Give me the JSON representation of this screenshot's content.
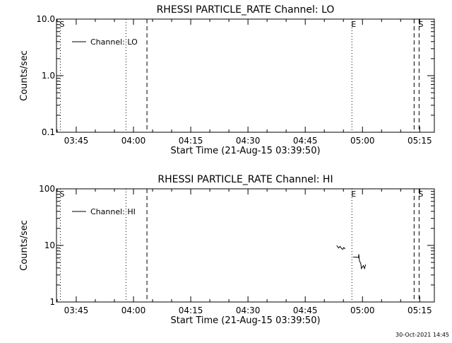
{
  "colors": {
    "background": "#ffffff",
    "foreground": "#000000"
  },
  "footer": {
    "timestamp": "30-Oct-2021 14:45"
  },
  "chart_data": [
    {
      "type": "line",
      "title": "RHESSI PARTICLE_RATE Channel: LO",
      "xlabel": "Start Time (21-Aug-15 03:39:50)",
      "ylabel": "Counts/sec",
      "yscale": "log",
      "ylim": [
        0.1,
        10.0
      ],
      "xlim_minutes": [
        0,
        99
      ],
      "xtick_minutes": [
        5.17,
        20.17,
        35.17,
        50.17,
        65.17,
        80.17,
        95.17
      ],
      "xtick_labels": [
        "03:45",
        "04:00",
        "04:15",
        "04:30",
        "04:45",
        "05:00",
        "05:15"
      ],
      "ytick_values": [
        0.1,
        1.0,
        10.0
      ],
      "ytick_labels": [
        "0.1",
        "1.0",
        "10.0"
      ],
      "legend": {
        "placement": "top-left",
        "entries": [
          "Channel: LO"
        ]
      },
      "series": [
        {
          "name": "Channel: LO",
          "points": []
        }
      ],
      "markers": [
        {
          "minute": 1.0,
          "style": "dotted",
          "label": "S"
        },
        {
          "minute": 18.2,
          "style": "dotted",
          "label": ""
        },
        {
          "minute": 23.7,
          "style": "dashed",
          "label": ""
        },
        {
          "minute": 77.4,
          "style": "dotted",
          "label": "E"
        },
        {
          "minute": 93.7,
          "style": "dashed",
          "label": ""
        },
        {
          "minute": 95.0,
          "style": "dashed",
          "label": "S"
        }
      ]
    },
    {
      "type": "line",
      "title": "RHESSI PARTICLE_RATE Channel: HI",
      "xlabel": "Start Time (21-Aug-15 03:39:50)",
      "ylabel": "Counts/sec",
      "yscale": "log",
      "ylim": [
        1,
        100
      ],
      "xlim_minutes": [
        0,
        99
      ],
      "xtick_minutes": [
        5.17,
        20.17,
        35.17,
        50.17,
        65.17,
        80.17,
        95.17
      ],
      "xtick_labels": [
        "03:45",
        "04:00",
        "04:15",
        "04:30",
        "04:45",
        "05:00",
        "05:15"
      ],
      "ytick_values": [
        1,
        10,
        100
      ],
      "ytick_labels": [
        "1",
        "10",
        "100"
      ],
      "legend": {
        "placement": "top-left",
        "entries": [
          "Channel: HI"
        ]
      },
      "series": [
        {
          "name": "Channel: HI",
          "points": [
            [
              73.4,
              10.0
            ],
            [
              73.9,
              9.0
            ],
            [
              74.3,
              9.6
            ],
            [
              74.7,
              8.8
            ],
            [
              75.0,
              8.5
            ],
            [
              75.3,
              9.2
            ],
            [
              75.6,
              8.6
            ]
          ]
        },
        {
          "name": "Channel: HI",
          "points": [
            [
              77.7,
              6.2
            ],
            [
              78.6,
              6.2
            ],
            [
              79.1,
              6.1
            ],
            [
              79.2,
              7.0
            ],
            [
              79.4,
              5.2
            ],
            [
              79.7,
              4.9
            ],
            [
              79.9,
              3.9
            ],
            [
              80.1,
              4.1
            ],
            [
              80.4,
              4.4
            ],
            [
              80.7,
              3.9
            ],
            [
              81.0,
              4.6
            ]
          ]
        }
      ],
      "markers": [
        {
          "minute": 1.0,
          "style": "dotted",
          "label": "S"
        },
        {
          "minute": 18.2,
          "style": "dotted",
          "label": ""
        },
        {
          "minute": 23.7,
          "style": "dashed",
          "label": ""
        },
        {
          "minute": 77.4,
          "style": "dotted",
          "label": "E"
        },
        {
          "minute": 93.7,
          "style": "dashed",
          "label": ""
        },
        {
          "minute": 95.0,
          "style": "dashed",
          "label": "S"
        }
      ]
    }
  ]
}
